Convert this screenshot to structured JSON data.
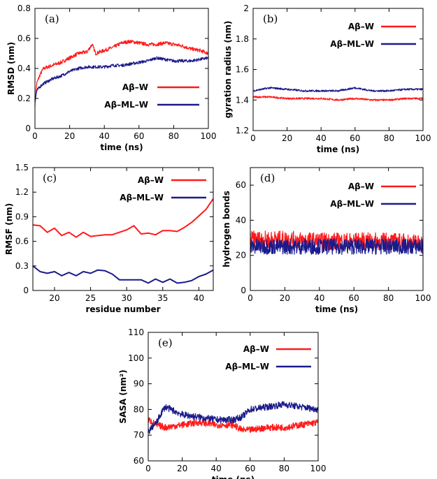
{
  "colors": {
    "aw": "#ff1a1a",
    "aml": "#1a1a8c",
    "axis": "#000000"
  },
  "series_names": [
    "Aβ–W",
    "Aβ–ML–W"
  ],
  "chart_data": [
    {
      "id": "a",
      "type": "line",
      "panel_label": "(a)",
      "xlabel": "time (ns)",
      "ylabel": "RMSD (nm)",
      "xlim": [
        0,
        100
      ],
      "ylim": [
        0,
        0.8
      ],
      "xticks": [
        0,
        20,
        40,
        60,
        80,
        100
      ],
      "yticks": [
        0,
        0.2,
        0.4,
        0.6,
        0.8
      ],
      "ytick_labels": [
        "0",
        "0.2",
        "0.4",
        "0.6",
        "0.8"
      ],
      "legend_position": "middle-right",
      "series": [
        {
          "name": "Aβ–W",
          "noise": 0.012,
          "x": [
            0,
            1,
            3,
            5,
            10,
            15,
            20,
            25,
            30,
            33,
            35,
            40,
            45,
            50,
            55,
            60,
            65,
            70,
            75,
            80,
            85,
            90,
            95,
            100
          ],
          "values": [
            0.16,
            0.3,
            0.36,
            0.4,
            0.42,
            0.44,
            0.47,
            0.5,
            0.51,
            0.56,
            0.5,
            0.52,
            0.54,
            0.57,
            0.58,
            0.57,
            0.56,
            0.56,
            0.57,
            0.56,
            0.55,
            0.53,
            0.52,
            0.5
          ]
        },
        {
          "name": "Aβ–ML–W",
          "noise": 0.01,
          "x": [
            0,
            1,
            3,
            5,
            10,
            15,
            20,
            25,
            30,
            35,
            40,
            45,
            50,
            55,
            60,
            65,
            70,
            75,
            80,
            85,
            90,
            95,
            100
          ],
          "values": [
            0.18,
            0.25,
            0.28,
            0.3,
            0.33,
            0.35,
            0.38,
            0.4,
            0.41,
            0.41,
            0.41,
            0.42,
            0.42,
            0.43,
            0.44,
            0.45,
            0.47,
            0.46,
            0.45,
            0.45,
            0.45,
            0.46,
            0.47
          ]
        }
      ]
    },
    {
      "id": "b",
      "type": "line",
      "panel_label": "(b)",
      "xlabel": "time (ns)",
      "ylabel": "gyration radius (nm)",
      "xlim": [
        0,
        100
      ],
      "ylim": [
        1.2,
        2.0
      ],
      "xticks": [
        0,
        20,
        40,
        60,
        80,
        100
      ],
      "yticks": [
        1.2,
        1.4,
        1.6,
        1.8,
        2.0
      ],
      "ytick_labels": [
        "1.2",
        "1.4",
        "1.6",
        "1.8",
        "2"
      ],
      "legend_position": "top-right",
      "series": [
        {
          "name": "Aβ–W",
          "noise": 0.006,
          "x": [
            0,
            10,
            20,
            30,
            40,
            50,
            60,
            70,
            80,
            90,
            100
          ],
          "values": [
            1.42,
            1.42,
            1.41,
            1.41,
            1.41,
            1.4,
            1.41,
            1.4,
            1.4,
            1.41,
            1.41
          ]
        },
        {
          "name": "Aβ–ML–W",
          "noise": 0.006,
          "x": [
            0,
            10,
            20,
            30,
            40,
            50,
            60,
            70,
            80,
            90,
            100
          ],
          "values": [
            1.46,
            1.48,
            1.47,
            1.46,
            1.46,
            1.46,
            1.48,
            1.46,
            1.46,
            1.47,
            1.47
          ]
        }
      ]
    },
    {
      "id": "c",
      "type": "line",
      "panel_label": "(c)",
      "xlabel": "residue number",
      "ylabel": "RMSF (nm)",
      "xlim": [
        17,
        42
      ],
      "ylim": [
        0,
        1.5
      ],
      "xticks": [
        20,
        25,
        30,
        35,
        40
      ],
      "yticks": [
        0,
        0.3,
        0.6,
        0.9,
        1.2,
        1.5
      ],
      "ytick_labels": [
        "0",
        "0.3",
        "0.6",
        "0.9",
        "1.2",
        "1.5"
      ],
      "legend_position": "top-right",
      "series": [
        {
          "name": "Aβ–W",
          "noise": 0,
          "x": [
            17,
            18,
            19,
            20,
            21,
            22,
            23,
            24,
            25,
            26,
            27,
            28,
            29,
            30,
            31,
            32,
            33,
            34,
            35,
            36,
            37,
            38,
            39,
            40,
            41,
            42
          ],
          "values": [
            0.8,
            0.79,
            0.71,
            0.76,
            0.67,
            0.71,
            0.65,
            0.71,
            0.66,
            0.67,
            0.68,
            0.68,
            0.71,
            0.74,
            0.79,
            0.69,
            0.7,
            0.68,
            0.73,
            0.73,
            0.72,
            0.77,
            0.83,
            0.91,
            0.99,
            1.12
          ]
        },
        {
          "name": "Aβ–ML–W",
          "noise": 0,
          "x": [
            17,
            18,
            19,
            20,
            21,
            22,
            23,
            24,
            25,
            26,
            27,
            28,
            29,
            30,
            31,
            32,
            33,
            34,
            35,
            36,
            37,
            38,
            39,
            40,
            41,
            42
          ],
          "values": [
            0.3,
            0.23,
            0.21,
            0.23,
            0.18,
            0.22,
            0.18,
            0.23,
            0.21,
            0.25,
            0.24,
            0.2,
            0.13,
            0.13,
            0.13,
            0.13,
            0.09,
            0.14,
            0.1,
            0.14,
            0.09,
            0.1,
            0.12,
            0.17,
            0.2,
            0.25
          ]
        }
      ]
    },
    {
      "id": "d",
      "type": "line",
      "panel_label": "(d)",
      "xlabel": "time (ns)",
      "ylabel": "hydrogen bonds",
      "xlim": [
        0,
        100
      ],
      "ylim": [
        0,
        70
      ],
      "xticks": [
        0,
        20,
        40,
        60,
        80,
        100
      ],
      "yticks": [
        0,
        20,
        40,
        60
      ],
      "ytick_labels": [
        "0",
        "20",
        "40",
        "60"
      ],
      "legend_position": "top-right",
      "series": [
        {
          "name": "Aβ–W",
          "noise": 5,
          "x": [
            0,
            20,
            40,
            60,
            80,
            100
          ],
          "values": [
            29,
            29,
            28,
            28,
            28,
            27
          ]
        },
        {
          "name": "Aβ–ML–W",
          "noise": 4.5,
          "x": [
            0,
            20,
            40,
            60,
            80,
            100
          ],
          "values": [
            25,
            25,
            25,
            25,
            25,
            25
          ]
        }
      ]
    },
    {
      "id": "e",
      "type": "line",
      "panel_label": "(e)",
      "xlabel": "time (ns)",
      "ylabel": "SASA (nm²)",
      "xlim": [
        0,
        100
      ],
      "ylim": [
        60,
        110
      ],
      "xticks": [
        0,
        20,
        40,
        60,
        80,
        100
      ],
      "yticks": [
        60,
        70,
        80,
        90,
        100,
        110
      ],
      "ytick_labels": [
        "60",
        "70",
        "80",
        "90",
        "100",
        "110"
      ],
      "legend_position": "top-right",
      "series": [
        {
          "name": "Aβ–W",
          "noise": 1.3,
          "x": [
            0,
            5,
            10,
            20,
            30,
            40,
            50,
            55,
            60,
            70,
            80,
            90,
            100
          ],
          "values": [
            76,
            74,
            73,
            74,
            75,
            74,
            74,
            72,
            72,
            73,
            73,
            74,
            75
          ]
        },
        {
          "name": "Aβ–ML–W",
          "noise": 1.3,
          "x": [
            0,
            2,
            5,
            8,
            10,
            20,
            30,
            40,
            50,
            55,
            60,
            70,
            80,
            90,
            100
          ],
          "values": [
            71,
            73,
            75,
            79,
            81,
            78,
            77,
            76,
            76,
            77,
            80,
            81,
            82,
            81,
            80
          ]
        }
      ]
    }
  ]
}
